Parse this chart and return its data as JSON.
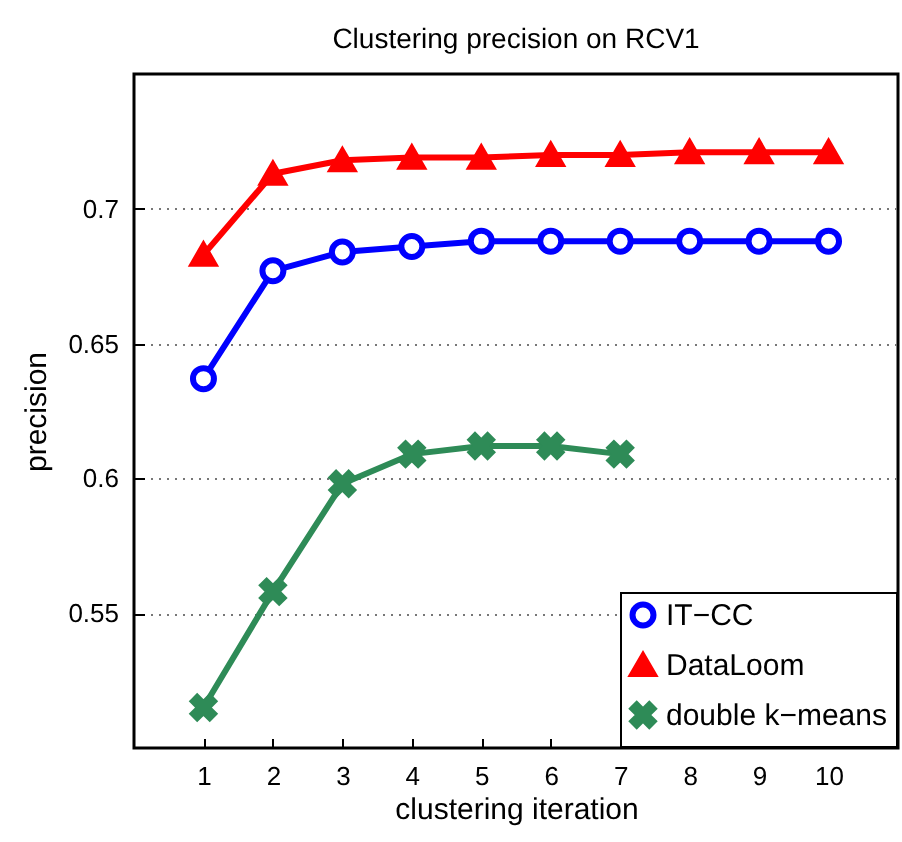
{
  "chart_data": {
    "type": "line",
    "title": "Clustering precision on RCV1",
    "xlabel": "clustering iteration",
    "ylabel": "precision",
    "xlim": [
      0,
      11
    ],
    "xticks": [
      1,
      2,
      3,
      4,
      5,
      6,
      7,
      8,
      9,
      10
    ],
    "ylim": [
      0.5,
      0.75
    ],
    "yticks": [
      0.55,
      0.6,
      0.65,
      0.7
    ],
    "grid": "y",
    "legend": "bottom right",
    "line_style": "solid",
    "series": [
      {
        "name": "IT−CC",
        "color": "#0000ff",
        "marker": "circle",
        "x": [
          1,
          2,
          3,
          4,
          5,
          6,
          7,
          8,
          9,
          10
        ],
        "values": [
          0.637,
          0.677,
          0.684,
          0.686,
          0.688,
          0.688,
          0.688,
          0.688,
          0.688,
          0.688
        ]
      },
      {
        "name": "DataLoom",
        "color": "#ff0000",
        "marker": "triangle",
        "x": [
          1,
          2,
          3,
          4,
          5,
          6,
          7,
          8,
          9,
          10
        ],
        "values": [
          0.683,
          0.713,
          0.718,
          0.719,
          0.719,
          0.72,
          0.72,
          0.721,
          0.721,
          0.721
        ]
      },
      {
        "name": "double k−means",
        "color": "#2e8b57",
        "marker": "cross",
        "x": [
          1,
          2,
          3,
          4,
          5,
          6,
          7
        ],
        "values": [
          0.515,
          0.558,
          0.598,
          0.609,
          0.612,
          0.612,
          0.609
        ]
      }
    ]
  }
}
